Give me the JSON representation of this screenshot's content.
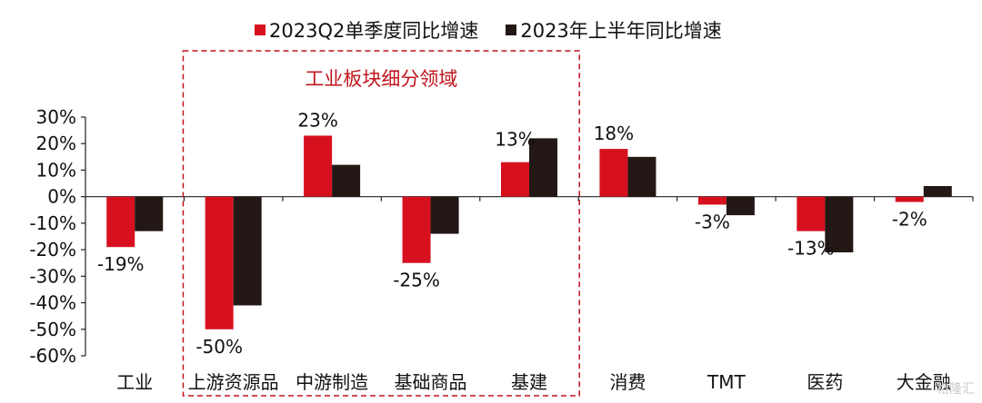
{
  "chart_data": {
    "type": "bar",
    "categories": [
      "工业",
      "上游资源品",
      "中游制造",
      "基础商品",
      "基建",
      "消费",
      "TMT",
      "医药",
      "大金融"
    ],
    "series": [
      {
        "name": "2023Q2单季度同比增速",
        "color": "#d7101f",
        "values": [
          -19,
          -50,
          23,
          -25,
          13,
          18,
          -3,
          -13,
          -2
        ]
      },
      {
        "name": "2023年上半年同比增速",
        "color": "#231815",
        "values": [
          -13,
          -41,
          12,
          -14,
          22,
          15,
          -7,
          -21,
          4
        ]
      }
    ],
    "data_labels": [
      "-19%",
      "-50%",
      "23%",
      "-25%",
      "13%",
      "18%",
      "-3%",
      "-13%",
      "-2%"
    ],
    "yticks": [
      "30%",
      "20%",
      "10%",
      "0%",
      "-10%",
      "-20%",
      "-30%",
      "-40%",
      "-50%",
      "-60%"
    ],
    "ylim": [
      -60,
      30
    ],
    "annotation": {
      "text": "工业板块细分领域",
      "color": "#c0141c",
      "spans_categories": [
        "上游资源品",
        "中游制造",
        "基础商品",
        "基建"
      ]
    },
    "legend_position": "top-center",
    "grid": false
  },
  "watermark": "格隆汇"
}
